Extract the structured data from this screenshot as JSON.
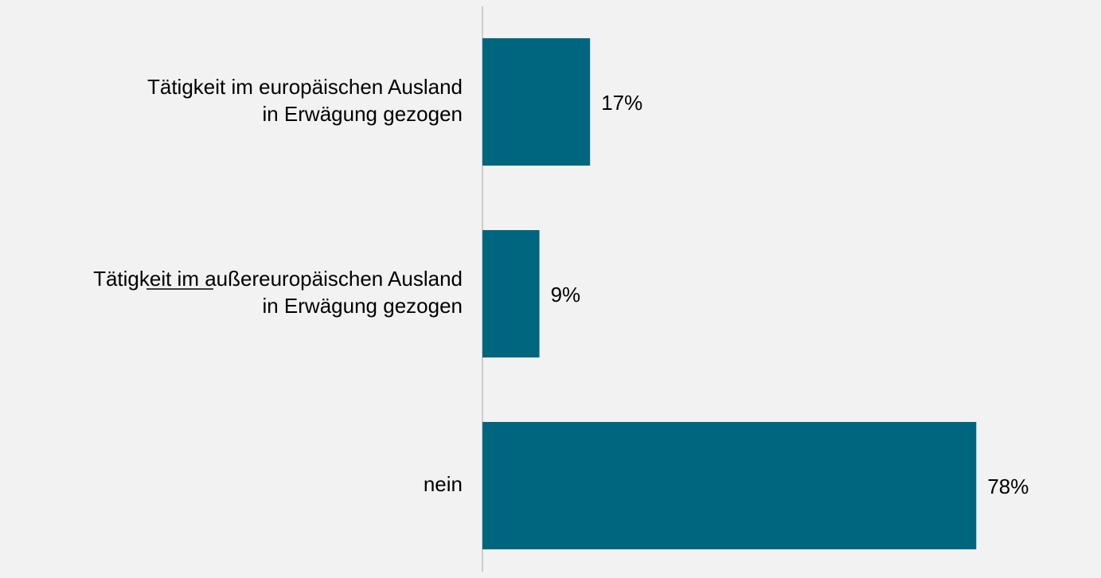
{
  "chart_data": {
    "type": "bar",
    "orientation": "horizontal",
    "categories": [
      [
        "Tätigkeit im europäischen Ausland",
        "in Erwägung gezogen"
      ],
      [
        "Tätigkeit im außereuropäischen Ausland",
        "in Erwägung gezogen"
      ],
      [
        "nein"
      ]
    ],
    "values": [
      17,
      9,
      78
    ],
    "value_labels": [
      "17%",
      "9%",
      "78%"
    ],
    "color": "#00667f",
    "xlim": [
      0,
      85
    ]
  }
}
